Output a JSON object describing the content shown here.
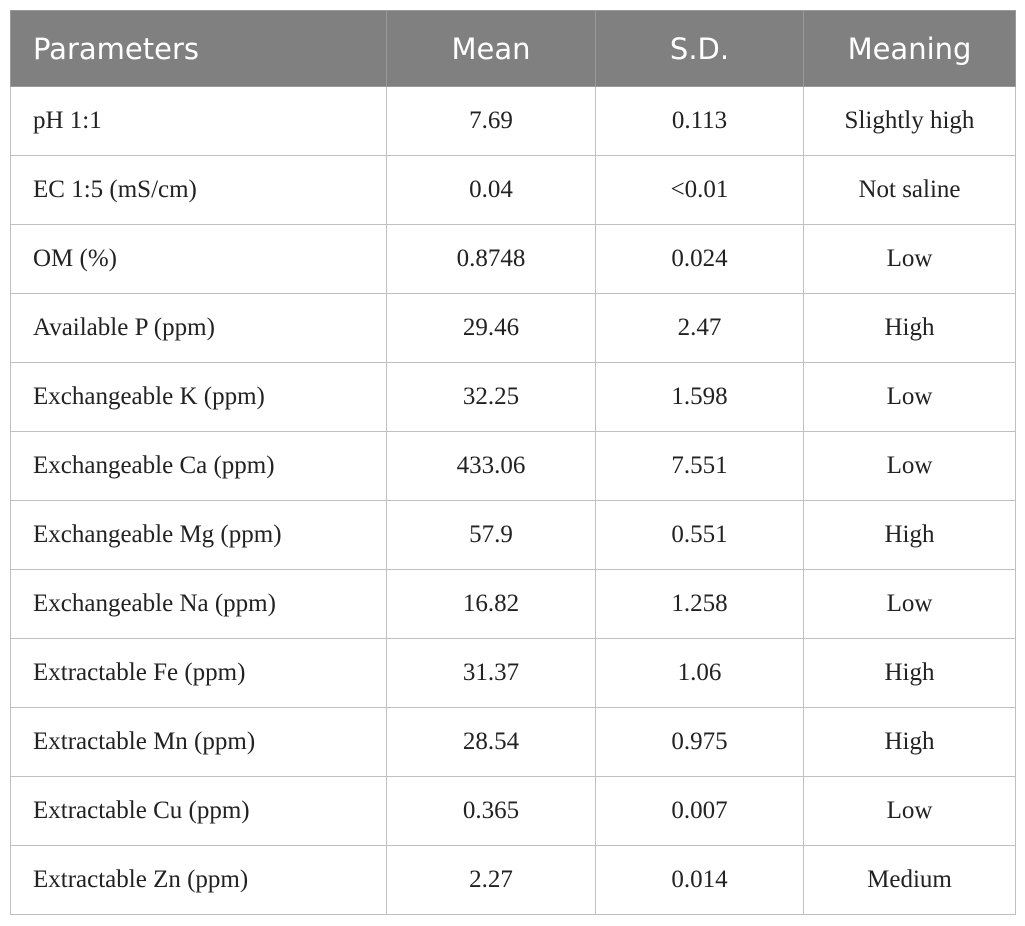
{
  "table": {
    "header": [
      "Parameters",
      "Mean",
      "S.D.",
      "Meaning"
    ],
    "rows": [
      [
        "pH 1:1",
        "7.69",
        "0.113",
        "Slightly high"
      ],
      [
        "EC 1:5 (mS/cm)",
        "0.04",
        "<0.01",
        "Not saline"
      ],
      [
        "OM (%)",
        "0.8748",
        "0.024",
        "Low"
      ],
      [
        "Available P (ppm)",
        "29.46",
        "2.47",
        "High"
      ],
      [
        "Exchangeable K (ppm)",
        "32.25",
        "1.598",
        "Low"
      ],
      [
        "Exchangeable Ca (ppm)",
        "433.06",
        "7.551",
        "Low"
      ],
      [
        "Exchangeable Mg (ppm)",
        "57.9",
        "0.551",
        "High"
      ],
      [
        "Exchangeable Na (ppm)",
        "16.82",
        "1.258",
        "Low"
      ],
      [
        "Extractable Fe (ppm)",
        "31.37",
        "1.06",
        "High"
      ],
      [
        "Extractable Mn (ppm)",
        "28.54",
        "0.975",
        "High"
      ],
      [
        "Extractable Cu (ppm)",
        "0.365",
        "0.007",
        "Low"
      ],
      [
        "Extractable Zn (ppm)",
        "2.27",
        "0.014",
        "Medium"
      ]
    ]
  }
}
